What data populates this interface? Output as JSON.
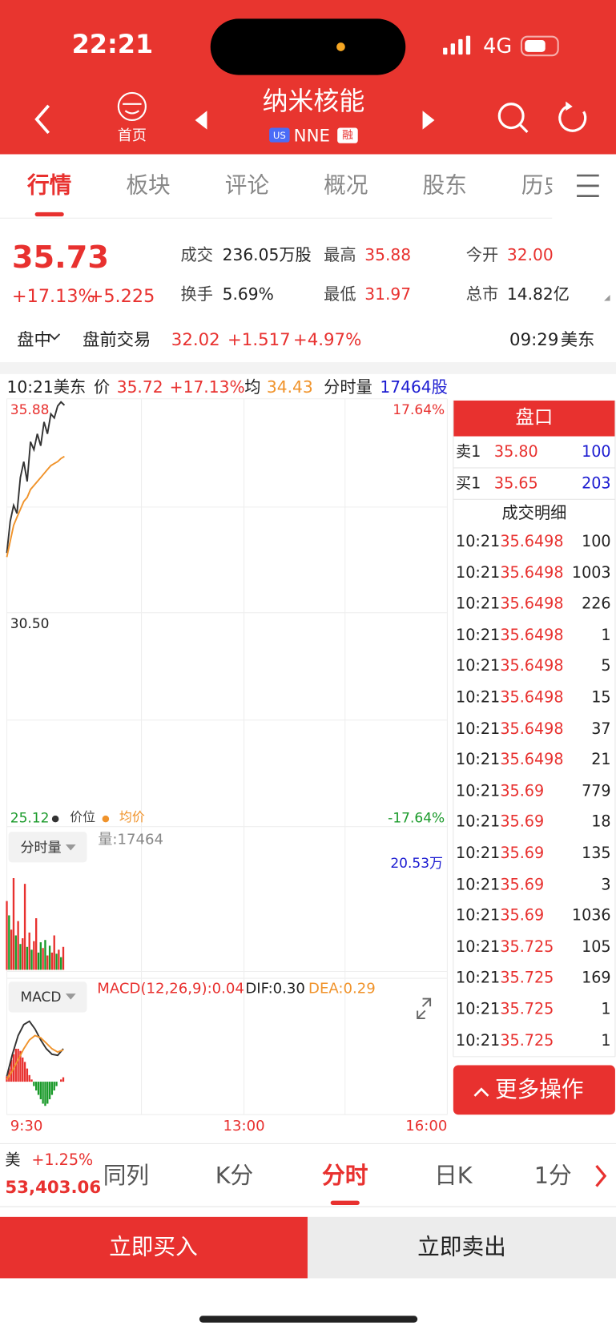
{
  "status_bar": {
    "time": "22:21",
    "network": "4G"
  },
  "header": {
    "home": "首页",
    "title": "纳米核能",
    "market": "US",
    "ticker": "NNE",
    "margin": "融"
  },
  "tabs": {
    "items": [
      "行情",
      "板块",
      "评论",
      "概况",
      "股东",
      "历史"
    ],
    "active": 0
  },
  "quote": {
    "price": "35.73",
    "change_pct": "+17.13%",
    "change": "+5.225",
    "fields": [
      {
        "label": "成交",
        "value": "236.05万股",
        "color": "#222222"
      },
      {
        "label": "最高",
        "value": "35.88",
        "color": "#e8312f"
      },
      {
        "label": "今开",
        "value": "32.00",
        "color": "#e8312f"
      },
      {
        "label": "换手",
        "value": "5.69%",
        "color": "#222222"
      },
      {
        "label": "最低",
        "value": "31.97",
        "color": "#e8312f"
      },
      {
        "label": "总市",
        "value": "14.82亿",
        "color": "#222222"
      }
    ]
  },
  "extended": {
    "session": "盘中",
    "label": "盘前交易",
    "price": "32.02",
    "change": "+1.517",
    "change_pct": "+4.97%",
    "time": "09:29",
    "zone": "美东"
  },
  "chart_info": {
    "time": "10:21美东",
    "price_label": "价",
    "price": "35.72",
    "change_pct": "+17.13%",
    "avg_label": "均",
    "avg": "34.43",
    "volume_label": "分时量",
    "volume": "17464股"
  },
  "intraday": {
    "x": [
      0,
      3,
      6,
      9,
      12,
      15,
      18,
      21,
      24,
      27,
      30,
      33,
      36,
      39,
      42,
      45,
      48,
      51
    ],
    "price": [
      32.0,
      32.8,
      33.2,
      33.0,
      33.9,
      34.3,
      33.8,
      34.8,
      34.6,
      35.0,
      34.7,
      35.3,
      35.0,
      35.5,
      35.4,
      35.7,
      35.8,
      35.72
    ],
    "avg": [
      31.9,
      32.3,
      32.7,
      32.9,
      33.1,
      33.3,
      33.4,
      33.6,
      33.7,
      33.8,
      33.9,
      34.0,
      34.1,
      34.2,
      34.25,
      34.3,
      34.38,
      34.43
    ],
    "xlim": [
      0,
      390
    ],
    "xticks": [
      {
        "value": 0,
        "label": "9:30"
      },
      {
        "value": 210,
        "label": "13:00"
      },
      {
        "value": 390,
        "label": "16:00"
      }
    ],
    "ylim": [
      25.12,
      35.88
    ],
    "yticks": [
      35.88,
      {
        "value": 30.5,
        "label": "30.50"
      },
      25.12
    ],
    "pct_high": "17.64%",
    "pct_low": "-17.64%",
    "legend": [
      "价位",
      "均价"
    ],
    "price_color": "#333333",
    "avg_color": "#f0932b"
  },
  "volume": {
    "selector": "分时量",
    "label": "量:17464",
    "max_label": "20.53万",
    "ylim": [
      0,
      205300
    ],
    "x": [
      0,
      2,
      4,
      6,
      8,
      10,
      12,
      14,
      16,
      18,
      20,
      22,
      24,
      26,
      28,
      30,
      32,
      34,
      36,
      38,
      40,
      42,
      44,
      46,
      48,
      50
    ],
    "values": [
      120000,
      95000,
      70000,
      160000,
      60000,
      85000,
      45000,
      55000,
      150000,
      40000,
      65000,
      35000,
      50000,
      90000,
      30000,
      48000,
      38000,
      52000,
      25000,
      42000,
      30000,
      60000,
      28000,
      35000,
      22000,
      40000
    ],
    "colors": [
      "#e8312f",
      "#1a9a2a",
      "#e8312f",
      "#e8312f",
      "#1a9a2a",
      "#e8312f",
      "#1a9a2a",
      "#e8312f",
      "#e8312f",
      "#1a9a2a",
      "#e8312f",
      "#1a9a2a",
      "#e8312f",
      "#e8312f",
      "#1a9a2a",
      "#1a9a2a",
      "#e8312f",
      "#1a9a2a",
      "#e8312f",
      "#1a9a2a",
      "#e8312f",
      "#e8312f",
      "#1a9a2a",
      "#e8312f",
      "#1a9a2a",
      "#e8312f"
    ]
  },
  "macd": {
    "selector": "MACD",
    "title": "MACD(12,26,9):0.04",
    "dif_label": "DIF:0.30",
    "dea_label": "DEA:0.29",
    "ylim": [
      -0.3,
      0.6
    ],
    "x": [
      0,
      5,
      10,
      15,
      20,
      25,
      30,
      35,
      40,
      45,
      50
    ],
    "dif": [
      0.05,
      0.25,
      0.42,
      0.52,
      0.55,
      0.48,
      0.38,
      0.3,
      0.25,
      0.24,
      0.3
    ],
    "dea": [
      0.02,
      0.1,
      0.2,
      0.3,
      0.38,
      0.42,
      0.4,
      0.35,
      0.3,
      0.27,
      0.29
    ],
    "hist_x": [
      0,
      2,
      4,
      6,
      8,
      10,
      12,
      14,
      16,
      18,
      20,
      22,
      24,
      26,
      28,
      30,
      32,
      34,
      36,
      38,
      40,
      42,
      44,
      46,
      48,
      50
    ],
    "hist": [
      0.05,
      0.12,
      0.2,
      0.25,
      0.3,
      0.3,
      0.28,
      0.22,
      0.18,
      0.12,
      0.06,
      0.02,
      -0.04,
      -0.08,
      -0.12,
      -0.16,
      -0.2,
      -0.22,
      -0.2,
      -0.16,
      -0.12,
      -0.08,
      -0.04,
      0.0,
      0.02,
      0.04
    ]
  },
  "order_book": {
    "title": "盘口",
    "levels": [
      [
        "卖1",
        "35.80",
        "100"
      ],
      [
        "买1",
        "35.65",
        "203"
      ]
    ],
    "trades_title": "成交明细",
    "trades": [
      [
        "10:21",
        "35.6498",
        "100"
      ],
      [
        "10:21",
        "35.6498",
        "1003"
      ],
      [
        "10:21",
        "35.6498",
        "226"
      ],
      [
        "10:21",
        "35.6498",
        "1"
      ],
      [
        "10:21",
        "35.6498",
        "5"
      ],
      [
        "10:21",
        "35.6498",
        "15"
      ],
      [
        "10:21",
        "35.6498",
        "37"
      ],
      [
        "10:21",
        "35.6498",
        "21"
      ],
      [
        "10:21",
        "35.69",
        "779"
      ],
      [
        "10:21",
        "35.69",
        "18"
      ],
      [
        "10:21",
        "35.69",
        "135"
      ],
      [
        "10:21",
        "35.69",
        "3"
      ],
      [
        "10:21",
        "35.69",
        "1036"
      ],
      [
        "10:21",
        "35.725",
        "105"
      ],
      [
        "10:21",
        "35.725",
        "169"
      ],
      [
        "10:21",
        "35.725",
        "1"
      ],
      [
        "10:21",
        "35.725",
        "1"
      ]
    ]
  },
  "more_button": "更多操作",
  "index": {
    "name": "美",
    "change_pct": "+1.25%",
    "value": "53,403.06"
  },
  "periods": {
    "items": [
      "同列",
      "K分",
      "分时",
      "日K",
      "1分"
    ],
    "active": 2
  },
  "actions": {
    "buy": "立即买入",
    "sell": "立即卖出"
  }
}
